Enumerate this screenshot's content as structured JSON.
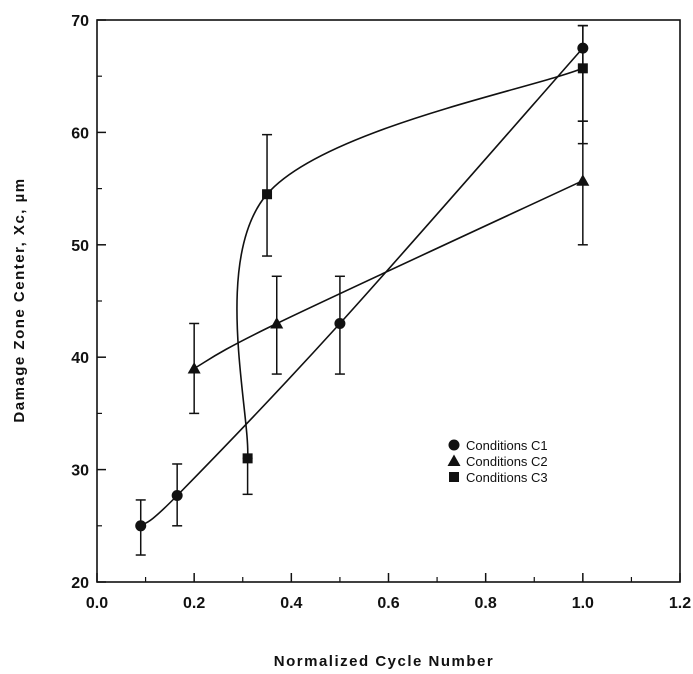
{
  "chart_data": {
    "type": "scatter",
    "title": "",
    "xlabel": "Normalized  Cycle  Number",
    "ylabel": "Damage  Zone  Center,  Xc,  µm",
    "xlim": [
      0.0,
      1.2
    ],
    "ylim": [
      20,
      70
    ],
    "x_ticks": [
      "0.0",
      "0.2",
      "0.4",
      "0.6",
      "0.8",
      "1.0",
      "1.2"
    ],
    "y_ticks": [
      "20",
      "30",
      "40",
      "50",
      "60",
      "70"
    ],
    "grid": false,
    "legend_position": "center-right",
    "series": [
      {
        "name": "Conditions C1",
        "marker": "circle",
        "x": [
          0.09,
          0.165,
          0.5,
          1.0
        ],
        "y": [
          25,
          27.7,
          43,
          67.5
        ],
        "err_low": [
          22.4,
          25.0,
          38.5,
          61
        ],
        "err_high": [
          27.3,
          30.5,
          47.2,
          69.5
        ]
      },
      {
        "name": "Conditions C2",
        "marker": "triangle",
        "x": [
          0.2,
          0.37,
          1.0
        ],
        "y": [
          39,
          43,
          55.7
        ],
        "err_low": [
          35,
          38.5,
          50
        ],
        "err_high": [
          43,
          47.2,
          61
        ]
      },
      {
        "name": "Conditions C3",
        "marker": "square",
        "x": [
          0.31,
          0.35,
          1.0
        ],
        "y": [
          31,
          54.5,
          65.7
        ],
        "err_low": [
          27.8,
          49,
          59
        ],
        "err_high": [
          31,
          59.8,
          69.5
        ]
      }
    ]
  },
  "colors": {
    "ink": "#111111",
    "background": "#ffffff"
  }
}
